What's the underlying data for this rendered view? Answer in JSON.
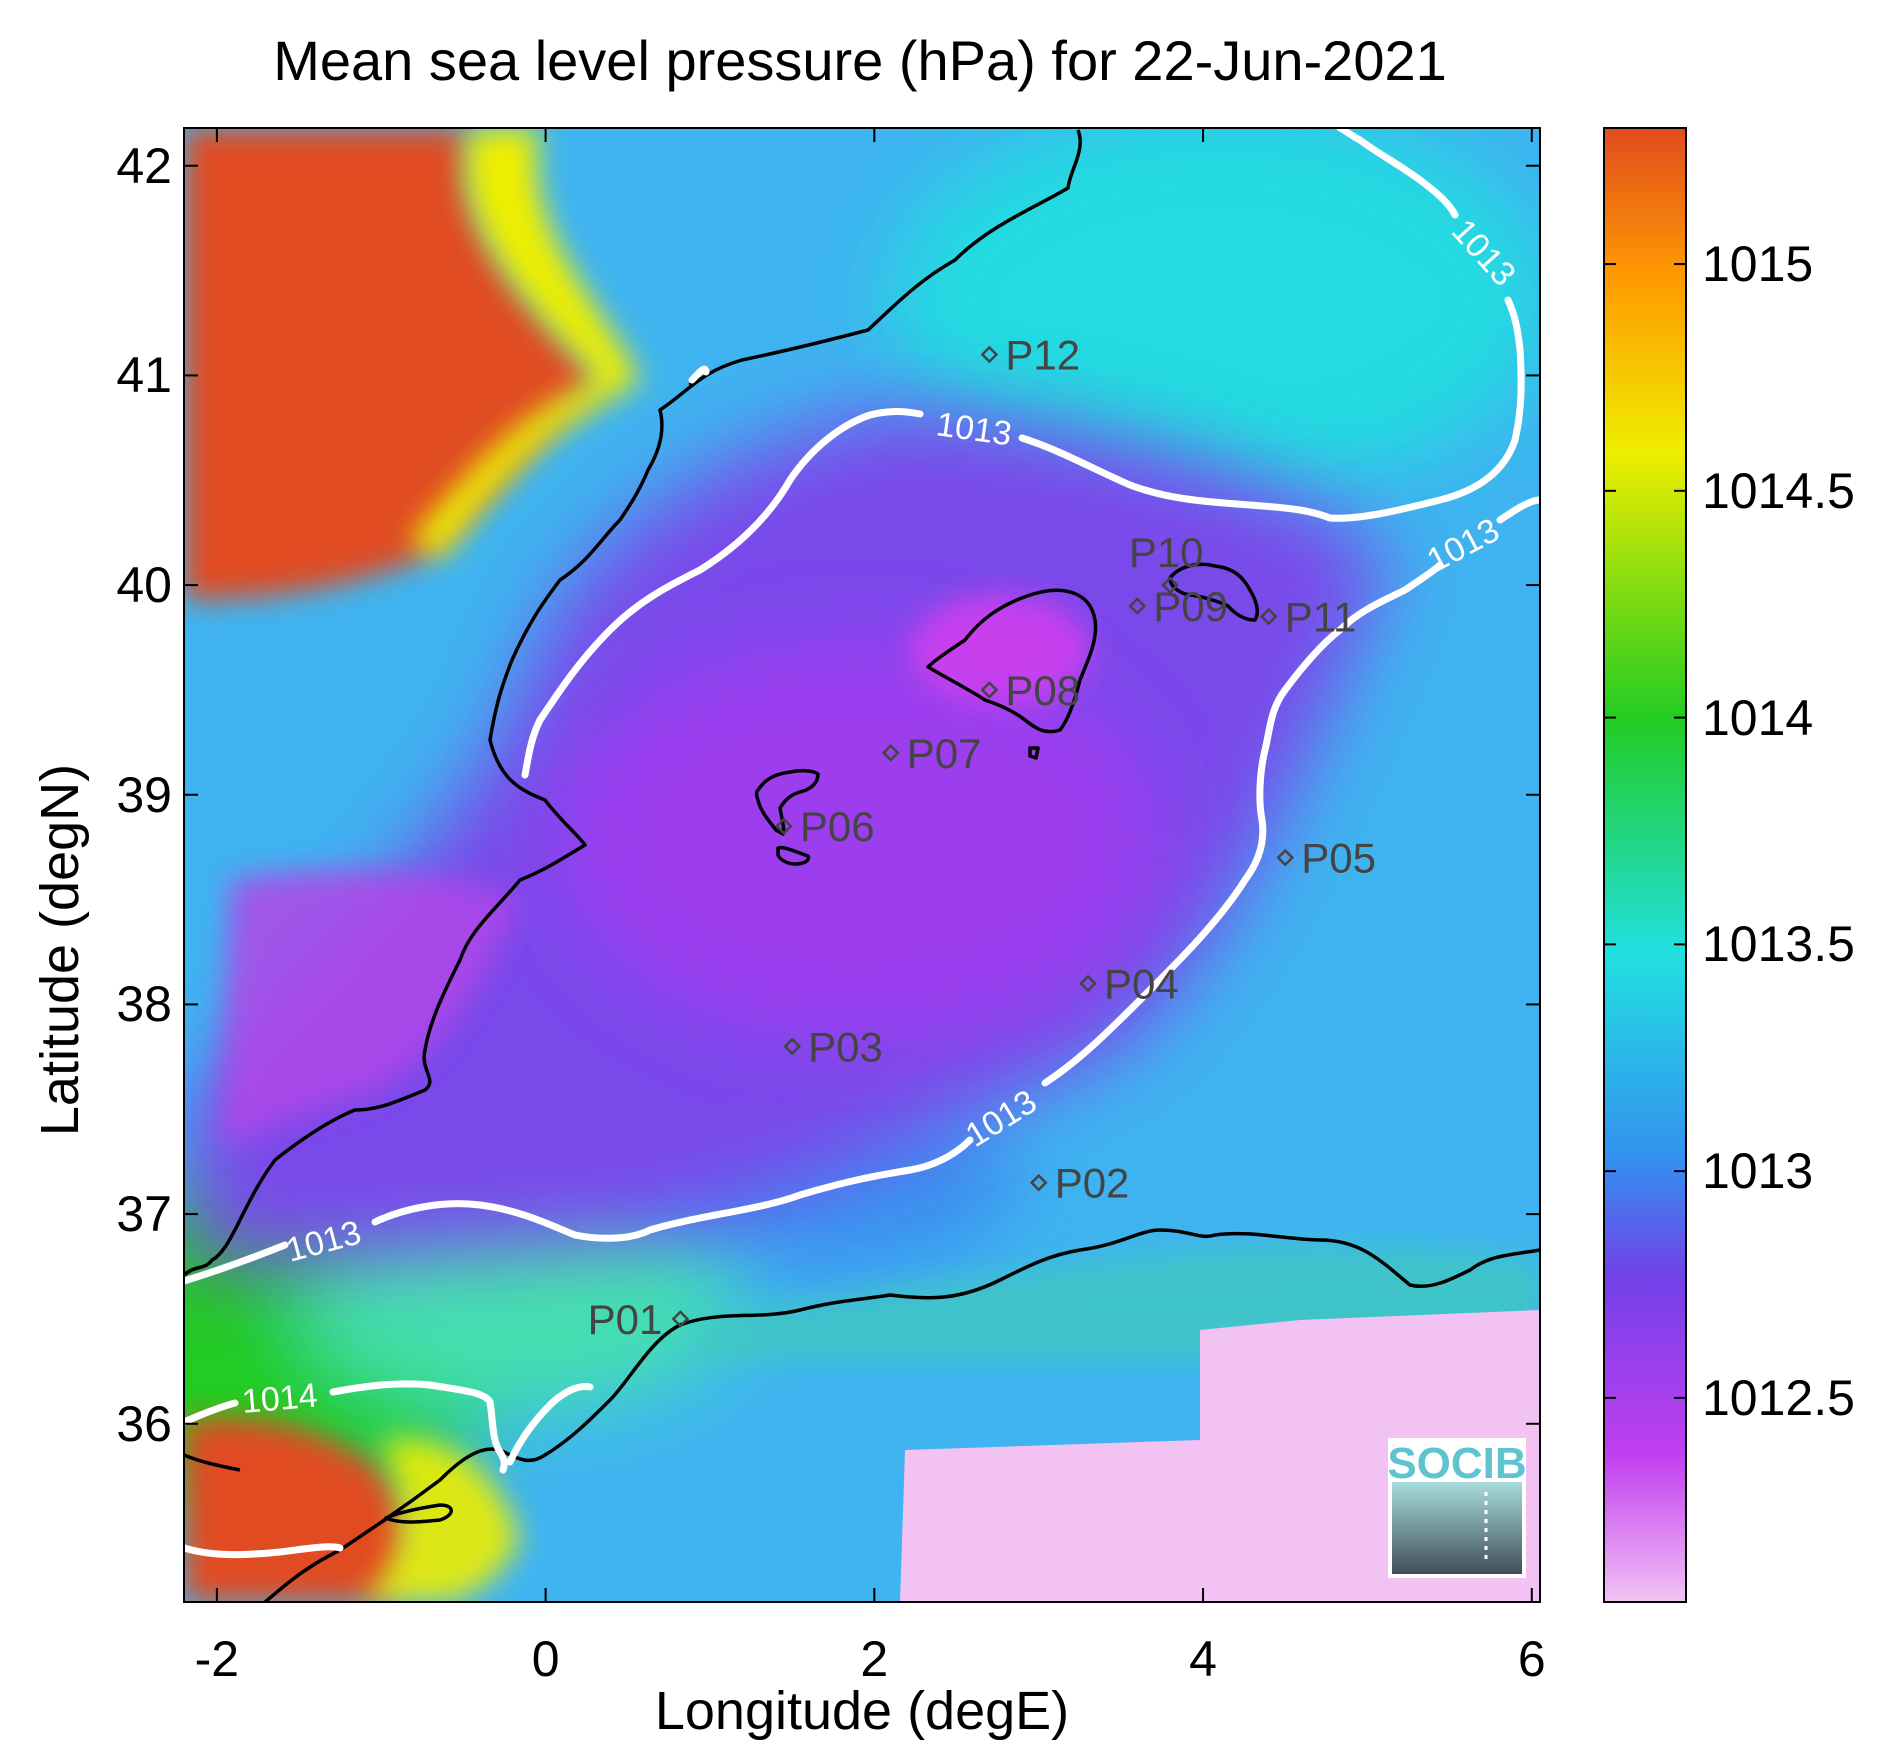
{
  "chart_data": {
    "type": "heatmap",
    "title": "Mean sea level pressure (hPa) for 22-Jun-2021",
    "xlabel": "Longitude (degE)",
    "ylabel": "Latitude (degN)",
    "xlim": [
      -2.2,
      6.05
    ],
    "ylim": [
      35.15,
      42.18
    ],
    "xticks": [
      -2,
      0,
      2,
      4,
      6
    ],
    "yticks": [
      36,
      37,
      38,
      39,
      40,
      41,
      42
    ],
    "colorbar": {
      "range": [
        1012.05,
        1015.3
      ],
      "ticks": [
        1012.5,
        1013,
        1013.5,
        1014,
        1014.5,
        1015
      ],
      "colors": [
        "#f2c2f2",
        "#c13ff0",
        "#7340e8",
        "#3390f0",
        "#22e0e0",
        "#22cc22",
        "#eeee00",
        "#ff9900",
        "#e04c20"
      ]
    },
    "contours": [
      {
        "level": 1013,
        "label": "1013"
      },
      {
        "level": 1014,
        "label": "1014"
      }
    ],
    "points": [
      {
        "name": "P01",
        "lon": 0.82,
        "lat": 36.5
      },
      {
        "name": "P02",
        "lon": 3.0,
        "lat": 37.15
      },
      {
        "name": "P03",
        "lon": 1.5,
        "lat": 37.8
      },
      {
        "name": "P04",
        "lon": 3.3,
        "lat": 38.1
      },
      {
        "name": "P05",
        "lon": 4.5,
        "lat": 38.7
      },
      {
        "name": "P06",
        "lon": 1.45,
        "lat": 38.85
      },
      {
        "name": "P07",
        "lon": 2.1,
        "lat": 39.2
      },
      {
        "name": "P08",
        "lon": 2.7,
        "lat": 39.5
      },
      {
        "name": "P09",
        "lon": 3.6,
        "lat": 39.9
      },
      {
        "name": "P10",
        "lon": 3.8,
        "lat": 40.0
      },
      {
        "name": "P11",
        "lon": 4.4,
        "lat": 39.85
      },
      {
        "name": "P12",
        "lon": 2.7,
        "lat": 41.1
      }
    ],
    "logo": "SOCIB"
  }
}
